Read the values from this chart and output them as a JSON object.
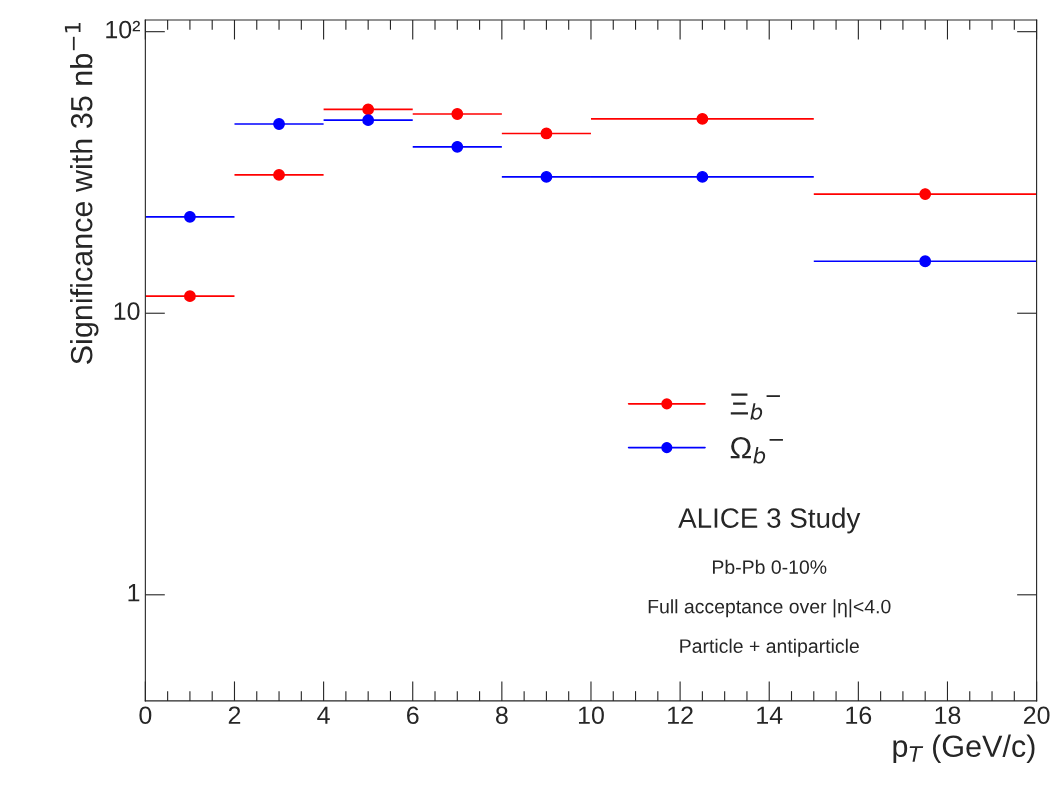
{
  "chart_data": {
    "type": "scatter",
    "xlabel": "p$_{T}$ (GeV/c)",
    "ylabel": "Significance with 35 nb$^{−1}$",
    "x": [
      1,
      3,
      5,
      7,
      9,
      12.5,
      17.5
    ],
    "series": [
      {
        "name": "Ξ$_{b}$$^{−}$",
        "color": "#ff0000",
        "values": [
          11.5,
          31,
          53,
          51,
          43.5,
          49,
          26.5
        ],
        "xerrors": [
          1,
          1,
          1,
          1,
          1,
          2.5,
          2.5
        ]
      },
      {
        "name": "Ω$_{b}$$^{−}$",
        "color": "#0000ff",
        "values": [
          22,
          47,
          48.5,
          39,
          30.5,
          30.5,
          15.3
        ],
        "xerrors": [
          1,
          1,
          1,
          1,
          1,
          2.5,
          2.5
        ]
      }
    ],
    "log": "y",
    "xlim": [
      0,
      20
    ],
    "xticks": [
      0,
      {
        "value": 0.5,
        "label": null
      },
      {
        "value": 1,
        "label": null
      },
      {
        "value": 1.5,
        "label": null
      },
      2,
      {
        "value": 2.5,
        "label": null
      },
      {
        "value": 3,
        "label": null
      },
      {
        "value": 3.5,
        "label": null
      },
      4,
      {
        "value": 4.5,
        "label": null
      },
      {
        "value": 5,
        "label": null
      },
      {
        "value": 5.5,
        "label": null
      },
      6,
      {
        "value": 6.5,
        "label": null
      },
      {
        "value": 7,
        "label": null
      },
      {
        "value": 7.5,
        "label": null
      },
      8,
      {
        "value": 8.5,
        "label": null
      },
      {
        "value": 9,
        "label": null
      },
      {
        "value": 9.5,
        "label": null
      },
      10,
      {
        "value": 10.5,
        "label": null
      },
      {
        "value": 11,
        "label": null
      },
      {
        "value": 11.5,
        "label": null
      },
      12,
      {
        "value": 12.5,
        "label": null
      },
      {
        "value": 13,
        "label": null
      },
      {
        "value": 13.5,
        "label": null
      },
      14,
      {
        "value": 14.5,
        "label": null
      },
      {
        "value": 15,
        "label": null
      },
      {
        "value": 15.5,
        "label": null
      },
      16,
      {
        "value": 16.5,
        "label": null
      },
      {
        "value": 17,
        "label": null
      },
      {
        "value": 17.5,
        "label": null
      },
      18,
      {
        "value": 18.5,
        "label": null
      },
      {
        "value": 19,
        "label": null
      },
      {
        "value": 19.5,
        "label": null
      },
      20
    ],
    "ylim": [
      0.42,
      110
    ],
    "yticks": [
      1,
      10,
      {
        "value": 100,
        "label": "10²"
      }
    ],
    "marker": "circle",
    "legend": "right",
    "grid": false,
    "annotations": [
      "ALICE 3 Study",
      "Pb-Pb 0-10%",
      "Full acceptance over |η|<4.0",
      "Particle + antiparticle"
    ]
  }
}
